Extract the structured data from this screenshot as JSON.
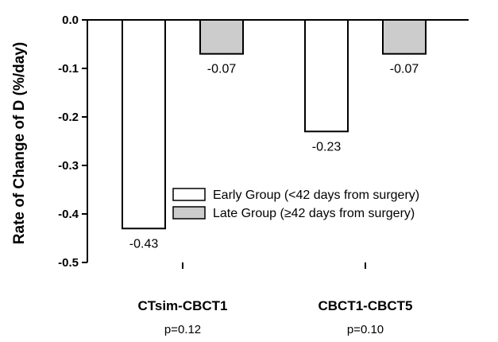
{
  "chart_data": {
    "type": "bar",
    "ylabel": "Rate of Change of D (%/day)",
    "ylim": [
      -0.5,
      0.0
    ],
    "yticks": [
      0.0,
      -0.1,
      -0.2,
      -0.3,
      -0.4,
      -0.5
    ],
    "ytick_labels": [
      "0.0",
      "-0.1",
      "-0.2",
      "-0.3",
      "-0.4",
      "-0.5"
    ],
    "categories": [
      "CTsim-CBCT1",
      "CBCT1-CBCT5"
    ],
    "category_notes": [
      "p=0.12",
      "p=0.10"
    ],
    "series": [
      {
        "name": "Early Group (<42 days from surgery)",
        "values": [
          -0.43,
          -0.23
        ],
        "labels": [
          "-0.43",
          "-0.23"
        ],
        "color": "#ffffff"
      },
      {
        "name": "Late Group (≥42 days from surgery)",
        "values": [
          -0.07,
          -0.07
        ],
        "labels": [
          "-0.07",
          "-0.07"
        ],
        "color": "#cccccc"
      }
    ],
    "legend": "center-right",
    "grid": false
  }
}
